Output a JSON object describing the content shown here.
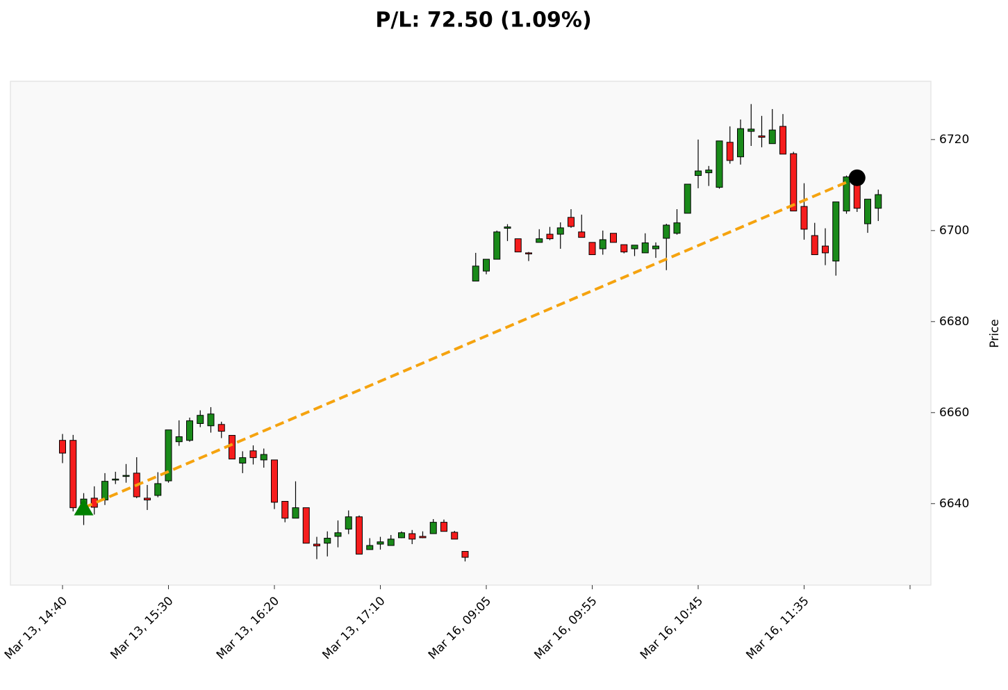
{
  "chart_data": {
    "type": "candlestick",
    "title": "P/L: 72.50 (1.09%)",
    "y_label": "Price",
    "categories": [
      "Mar 13, 14:40",
      null,
      null,
      null,
      null,
      null,
      null,
      null,
      null,
      null,
      "Mar 13, 15:30",
      null,
      null,
      null,
      null,
      null,
      null,
      null,
      null,
      null,
      "Mar 13, 16:20",
      null,
      null,
      null,
      null,
      null,
      null,
      null,
      null,
      null,
      "Mar 13, 17:10",
      null,
      null,
      null,
      null,
      null,
      null,
      null,
      null,
      null,
      "Mar 16, 09:05",
      null,
      null,
      null,
      null,
      null,
      null,
      null,
      null,
      null,
      "Mar 16, 09:55",
      null,
      null,
      null,
      null,
      null,
      null,
      null,
      null,
      null,
      "Mar 16, 10:45",
      null,
      null,
      null,
      null,
      null,
      null,
      null,
      null,
      null,
      "Mar 16, 11:35",
      null,
      null,
      null,
      null,
      null,
      null,
      null
    ],
    "open": [
      6653.9,
      6653.9,
      6639.1,
      6641.2,
      6640.8,
      6645.2,
      6646.0,
      6646.7,
      6641.2,
      6641.8,
      6645.0,
      6653.6,
      6653.9,
      6657.6,
      6657.1,
      6657.4,
      6655.0,
      6648.9,
      6651.6,
      6649.6,
      6649.6,
      6640.5,
      6636.8,
      6639.1,
      6631.1,
      6631.3,
      6632.8,
      6634.4,
      6637.1,
      6629.9,
      6631.1,
      6630.8,
      6632.5,
      6633.4,
      6632.8,
      6633.4,
      6635.9,
      6633.7,
      6629.5,
      6688.9,
      6691.1,
      6693.7,
      6700.5,
      6698.2,
      6695.1,
      6697.4,
      6699.2,
      6699.2,
      6702.9,
      6699.7,
      6697.4,
      6696.0,
      6699.4,
      6696.9,
      6696.0,
      6695.1,
      6696.0,
      6698.3,
      6699.4,
      6703.8,
      6712.1,
      6712.7,
      6709.5,
      6719.4,
      6716.2,
      6721.8,
      6720.8,
      6719.1,
      6722.9,
      6716.9,
      6705.3,
      6698.9,
      6696.6,
      6693.3,
      6704.3,
      6711.6,
      6701.5,
      6704.9
    ],
    "high": [
      6655.3,
      6655.1,
      6642.3,
      6643.8,
      6646.7,
      6647.0,
      6648.7,
      6650.2,
      6644.1,
      6646.9,
      6656.2,
      6658.3,
      6658.9,
      6660.5,
      6661.2,
      6658.0,
      6655.0,
      6651.5,
      6652.8,
      6652.1,
      6649.6,
      6640.5,
      6644.9,
      6639.1,
      6632.7,
      6633.9,
      6636.3,
      6638.5,
      6637.4,
      6632.4,
      6632.7,
      6633.1,
      6633.9,
      6634.2,
      6633.9,
      6636.6,
      6636.5,
      6634.0,
      6629.5,
      6695.1,
      6693.7,
      6700.0,
      6701.4,
      6698.2,
      6695.3,
      6700.3,
      6700.8,
      6701.8,
      6704.7,
      6703.5,
      6697.4,
      6700.0,
      6699.4,
      6696.9,
      6696.8,
      6699.4,
      6697.4,
      6701.5,
      6704.7,
      6710.2,
      6720.0,
      6714.2,
      6719.7,
      6722.9,
      6724.4,
      6727.8,
      6725.2,
      6726.7,
      6725.6,
      6717.3,
      6710.4,
      6701.7,
      6700.5,
      6706.3,
      6712.1,
      6712.8,
      6706.9,
      6709.0
    ],
    "low": [
      6648.9,
      6638.3,
      6635.3,
      6637.6,
      6639.7,
      6644.3,
      6644.6,
      6641.2,
      6638.6,
      6641.4,
      6644.6,
      6652.7,
      6653.6,
      6656.8,
      6655.6,
      6654.4,
      6649.8,
      6646.7,
      6648.6,
      6647.9,
      6638.8,
      6635.9,
      6636.8,
      6631.3,
      6627.8,
      6628.4,
      6630.4,
      6633.3,
      6628.9,
      6629.9,
      6629.9,
      6630.8,
      6632.4,
      6631.1,
      6632.4,
      6633.4,
      6633.9,
      6632.2,
      6627.3,
      6688.9,
      6690.4,
      6693.7,
      6697.7,
      6695.3,
      6693.3,
      6697.4,
      6697.9,
      6696.0,
      6700.6,
      6698.5,
      6694.7,
      6694.7,
      6697.4,
      6695.0,
      6694.4,
      6695.1,
      6694.0,
      6691.3,
      6699.1,
      6703.8,
      6709.3,
      6709.8,
      6709.2,
      6714.7,
      6714.5,
      6718.6,
      6718.3,
      6719.1,
      6716.8,
      6704.3,
      6698.0,
      6694.7,
      6692.4,
      6690.1,
      6703.7,
      6704.1,
      6699.5,
      6702.1
    ],
    "close": [
      6651.1,
      6639.1,
      6641.0,
      6639.2,
      6644.9,
      6645.4,
      6646.2,
      6641.5,
      6640.8,
      6644.4,
      6656.2,
      6654.7,
      6658.2,
      6659.4,
      6659.7,
      6655.9,
      6649.8,
      6650.1,
      6650.1,
      6650.8,
      6640.3,
      6636.8,
      6639.1,
      6631.3,
      6630.7,
      6632.4,
      6633.6,
      6637.1,
      6628.9,
      6630.8,
      6631.6,
      6632.2,
      6633.6,
      6632.2,
      6632.5,
      6635.9,
      6633.9,
      6632.2,
      6628.2,
      6692.2,
      6693.7,
      6699.7,
      6700.8,
      6695.3,
      6695.0,
      6698.2,
      6698.2,
      6700.6,
      6700.9,
      6698.5,
      6694.7,
      6698.0,
      6697.4,
      6695.3,
      6696.8,
      6697.3,
      6696.6,
      6701.2,
      6701.7,
      6710.2,
      6713.1,
      6713.3,
      6719.7,
      6715.4,
      6722.4,
      6722.3,
      6720.5,
      6722.1,
      6716.8,
      6704.3,
      6700.3,
      6694.7,
      6695.1,
      6706.3,
      6711.8,
      6704.9,
      6706.9,
      6707.9
    ],
    "up_color": "#1a8a1a",
    "down_color": "#f51d1d",
    "trade": {
      "entry_index": 2,
      "exit_index": 75,
      "entry_price": 6639.1,
      "exit_price": 6711.6,
      "line_color": "#f5a30f",
      "entry_color": "#008000",
      "exit_color": "#000000"
    },
    "ylim": [
      6622.1,
      6732.8
    ],
    "yticks": [
      6640,
      6660,
      6680,
      6700,
      6720
    ]
  }
}
